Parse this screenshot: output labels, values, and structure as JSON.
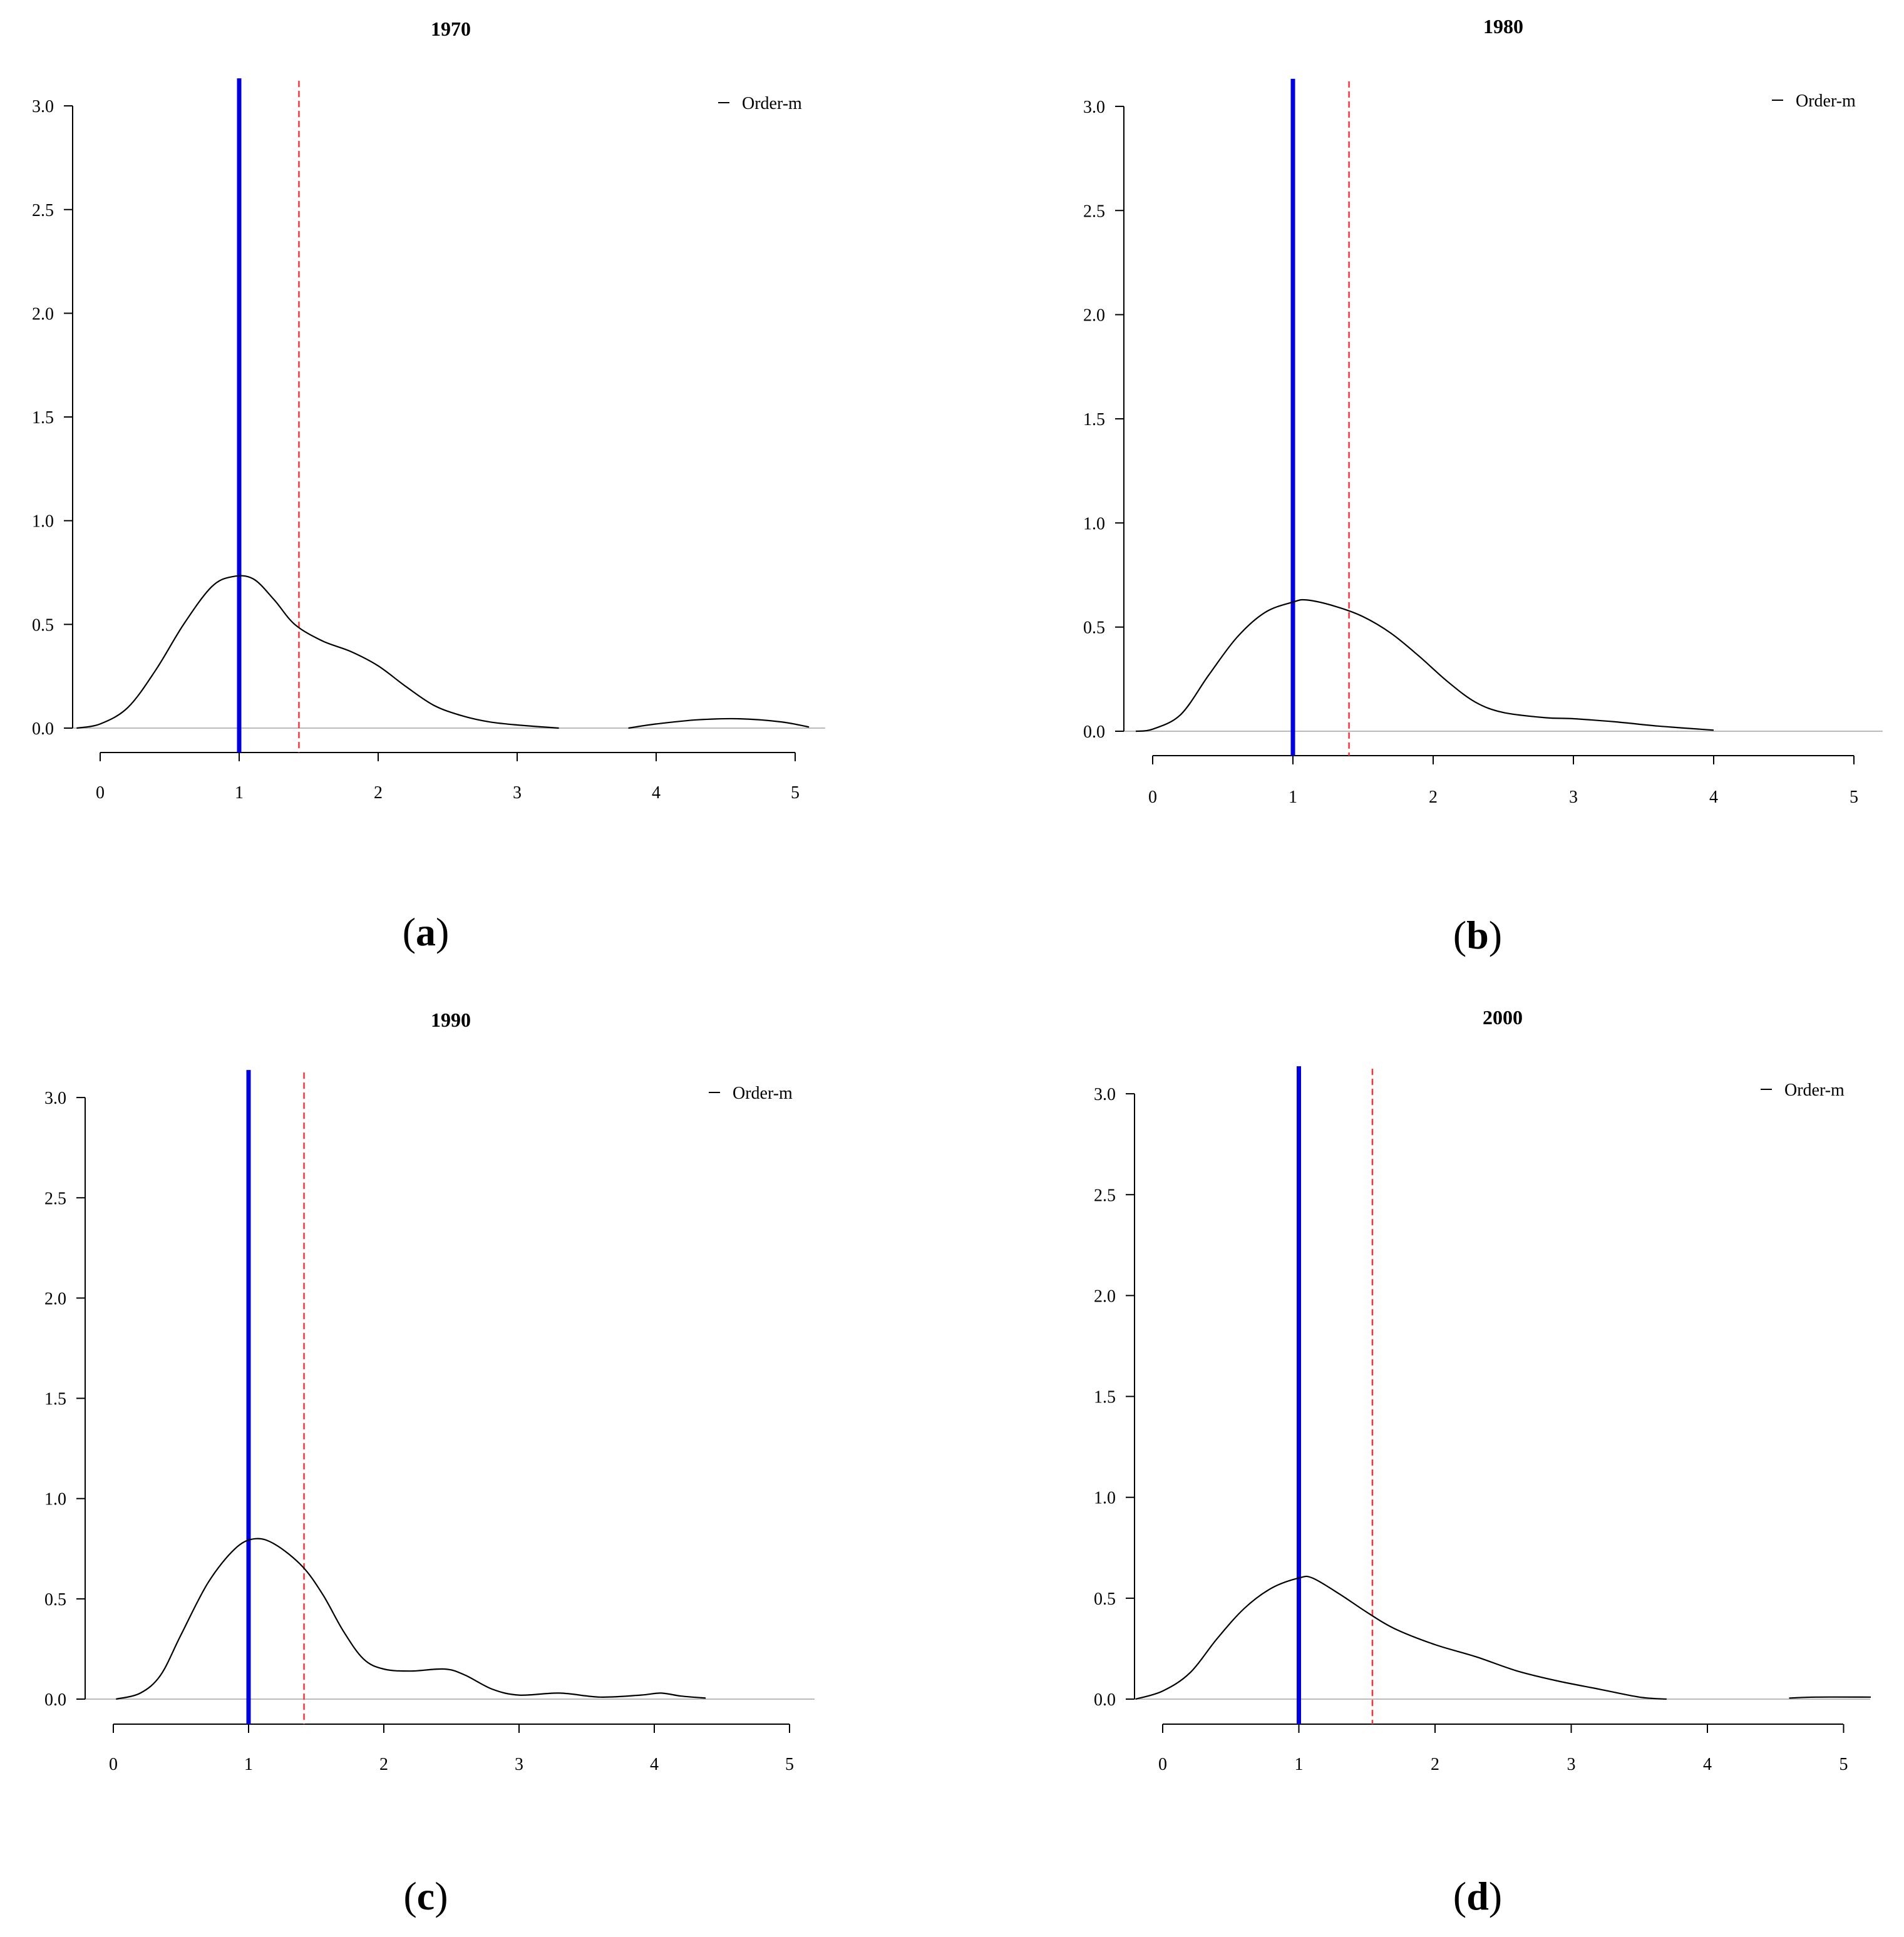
{
  "figure": {
    "panels": [
      {
        "label_letter": "a"
      },
      {
        "label_letter": "b"
      },
      {
        "label_letter": "c"
      },
      {
        "label_letter": "d"
      }
    ]
  },
  "chart_data": [
    {
      "type": "line",
      "title": "1970",
      "xlabel": "",
      "ylabel": "",
      "xlim": [
        -0.2,
        5.2
      ],
      "ylim": [
        0,
        3.0
      ],
      "x_ticks": [
        0,
        1,
        2,
        3,
        4,
        5
      ],
      "x_tick_labels": [
        "0",
        "1",
        "2",
        "3",
        "4",
        "5"
      ],
      "y_ticks": [
        0,
        0.5,
        1,
        1.5,
        2,
        2.5,
        3
      ],
      "y_tick_labels": [
        "0.0",
        "0.5",
        "1.0",
        "1.5",
        "2.0",
        "2.5",
        "3.0"
      ],
      "legend": {
        "entries": [
          "Order-m"
        ],
        "placement": "top-right"
      },
      "reference_lines": [
        {
          "style": "solid",
          "color": "#0000dd",
          "x": 1.0
        },
        {
          "style": "dashed",
          "color": "#ff3333",
          "x": 1.43
        }
      ],
      "series": [
        {
          "name": "Order-m",
          "color": "#000000",
          "segments": [
            [
              [
                -0.17,
                0.0
              ],
              [
                0.0,
                0.02
              ],
              [
                0.2,
                0.1
              ],
              [
                0.4,
                0.28
              ],
              [
                0.6,
                0.5
              ],
              [
                0.8,
                0.68
              ],
              [
                0.95,
                0.73
              ],
              [
                1.1,
                0.72
              ],
              [
                1.25,
                0.62
              ],
              [
                1.4,
                0.5
              ],
              [
                1.6,
                0.42
              ],
              [
                1.8,
                0.37
              ],
              [
                2.0,
                0.3
              ],
              [
                2.2,
                0.2
              ],
              [
                2.4,
                0.11
              ],
              [
                2.6,
                0.06
              ],
              [
                2.8,
                0.03
              ],
              [
                3.0,
                0.015
              ],
              [
                3.3,
                0.0
              ]
            ],
            [
              [
                3.8,
                0.0
              ],
              [
                4.0,
                0.02
              ],
              [
                4.3,
                0.04
              ],
              [
                4.6,
                0.045
              ],
              [
                4.9,
                0.03
              ],
              [
                5.1,
                0.005
              ]
            ]
          ]
        }
      ]
    },
    {
      "type": "line",
      "title": "1980",
      "xlabel": "",
      "ylabel": "",
      "xlim": [
        -0.2,
        5.2
      ],
      "ylim": [
        0,
        3.0
      ],
      "x_ticks": [
        0,
        1,
        2,
        3,
        4,
        5
      ],
      "x_tick_labels": [
        "0",
        "1",
        "2",
        "3",
        "4",
        "5"
      ],
      "y_ticks": [
        0,
        0.5,
        1,
        1.5,
        2,
        2.5,
        3
      ],
      "y_tick_labels": [
        "0.0",
        "0.5",
        "1.0",
        "1.5",
        "2.0",
        "2.5",
        "3.0"
      ],
      "legend": {
        "entries": [
          "Order-m"
        ],
        "placement": "top-right"
      },
      "reference_lines": [
        {
          "style": "solid",
          "color": "#0000dd",
          "x": 1.0
        },
        {
          "style": "dashed",
          "color": "#ff3333",
          "x": 1.4
        }
      ],
      "series": [
        {
          "name": "Order-m",
          "color": "#000000",
          "segments": [
            [
              [
                -0.12,
                0.0
              ],
              [
                0.0,
                0.01
              ],
              [
                0.2,
                0.08
              ],
              [
                0.4,
                0.27
              ],
              [
                0.6,
                0.45
              ],
              [
                0.8,
                0.57
              ],
              [
                1.0,
                0.62
              ],
              [
                1.1,
                0.63
              ],
              [
                1.3,
                0.6
              ],
              [
                1.5,
                0.55
              ],
              [
                1.7,
                0.47
              ],
              [
                1.9,
                0.36
              ],
              [
                2.1,
                0.24
              ],
              [
                2.3,
                0.14
              ],
              [
                2.5,
                0.09
              ],
              [
                2.8,
                0.065
              ],
              [
                3.0,
                0.06
              ],
              [
                3.3,
                0.045
              ],
              [
                3.6,
                0.025
              ],
              [
                3.9,
                0.01
              ],
              [
                4.0,
                0.005
              ]
            ]
          ]
        }
      ]
    },
    {
      "type": "line",
      "title": "1990",
      "xlabel": "",
      "ylabel": "",
      "xlim": [
        -0.2,
        5.2
      ],
      "ylim": [
        0,
        3.0
      ],
      "x_ticks": [
        0,
        1,
        2,
        3,
        4,
        5
      ],
      "x_tick_labels": [
        "0",
        "1",
        "2",
        "3",
        "4",
        "5"
      ],
      "y_ticks": [
        0,
        0.5,
        1,
        1.5,
        2,
        2.5,
        3
      ],
      "y_tick_labels": [
        "0.0",
        "0.5",
        "1.0",
        "1.5",
        "2.0",
        "2.5",
        "3.0"
      ],
      "legend": {
        "entries": [
          "Order-m"
        ],
        "placement": "top-right"
      },
      "reference_lines": [
        {
          "style": "solid",
          "color": "#0000dd",
          "x": 1.0
        },
        {
          "style": "dashed",
          "color": "#ff3333",
          "x": 1.41
        }
      ],
      "series": [
        {
          "name": "Order-m",
          "color": "#000000",
          "segments": [
            [
              [
                0.02,
                0.0
              ],
              [
                0.2,
                0.03
              ],
              [
                0.35,
                0.12
              ],
              [
                0.5,
                0.32
              ],
              [
                0.7,
                0.58
              ],
              [
                0.9,
                0.75
              ],
              [
                1.05,
                0.8
              ],
              [
                1.2,
                0.77
              ],
              [
                1.4,
                0.66
              ],
              [
                1.55,
                0.52
              ],
              [
                1.7,
                0.34
              ],
              [
                1.85,
                0.2
              ],
              [
                2.0,
                0.15
              ],
              [
                2.2,
                0.14
              ],
              [
                2.45,
                0.15
              ],
              [
                2.6,
                0.12
              ],
              [
                2.8,
                0.05
              ],
              [
                3.0,
                0.02
              ],
              [
                3.3,
                0.03
              ],
              [
                3.6,
                0.01
              ],
              [
                3.9,
                0.02
              ],
              [
                4.05,
                0.03
              ],
              [
                4.2,
                0.015
              ],
              [
                4.38,
                0.005
              ]
            ]
          ]
        }
      ]
    },
    {
      "type": "line",
      "title": "2000",
      "xlabel": "",
      "ylabel": "",
      "xlim": [
        -0.2,
        5.2
      ],
      "ylim": [
        0,
        3.0
      ],
      "x_ticks": [
        0,
        1,
        2,
        3,
        4,
        5
      ],
      "x_tick_labels": [
        "0",
        "1",
        "2",
        "3",
        "4",
        "5"
      ],
      "y_ticks": [
        0,
        0.5,
        1,
        1.5,
        2,
        2.5,
        3
      ],
      "y_tick_labels": [
        "0.0",
        "0.5",
        "1.0",
        "1.5",
        "2.0",
        "2.5",
        "3.0"
      ],
      "legend": {
        "entries": [
          "Order-m"
        ],
        "placement": "top-right"
      },
      "reference_lines": [
        {
          "style": "solid",
          "color": "#0000dd",
          "x": 1.0
        },
        {
          "style": "dashed",
          "color": "#ff3333",
          "x": 1.54
        }
      ],
      "series": [
        {
          "name": "Order-m",
          "color": "#000000",
          "segments": [
            [
              [
                -0.2,
                0.0
              ],
              [
                0.0,
                0.04
              ],
              [
                0.2,
                0.13
              ],
              [
                0.4,
                0.3
              ],
              [
                0.6,
                0.45
              ],
              [
                0.8,
                0.55
              ],
              [
                1.0,
                0.6
              ],
              [
                1.1,
                0.6
              ],
              [
                1.3,
                0.52
              ],
              [
                1.5,
                0.43
              ],
              [
                1.7,
                0.35
              ],
              [
                2.0,
                0.27
              ],
              [
                2.3,
                0.21
              ],
              [
                2.6,
                0.14
              ],
              [
                2.9,
                0.09
              ],
              [
                3.2,
                0.05
              ],
              [
                3.5,
                0.01
              ],
              [
                3.7,
                0.0
              ]
            ],
            [
              [
                4.6,
                0.005
              ],
              [
                4.8,
                0.01
              ],
              [
                5.2,
                0.01
              ]
            ]
          ]
        }
      ]
    }
  ]
}
